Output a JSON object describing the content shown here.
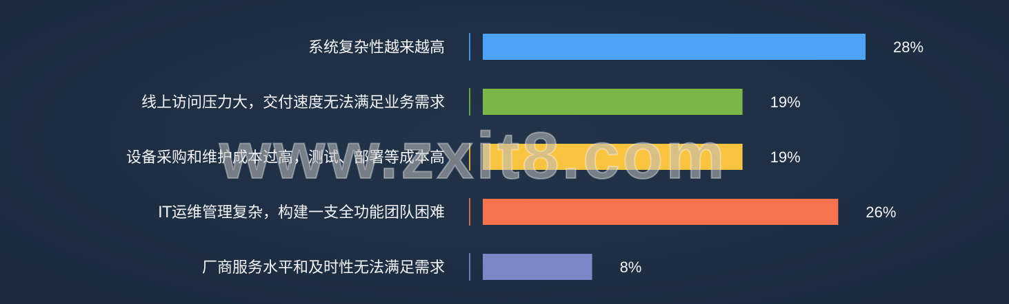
{
  "chart_data": {
    "type": "bar",
    "orientation": "horizontal",
    "categories": [
      "系统复杂性越来越高",
      "线上访问压力大，交付速度无法满足业务需求",
      "设备采购和维护成本过高，测试、部署等成本高",
      "IT运维管理复杂，构建一支全功能团队困难",
      "厂商服务水平和及时性无法满足需求"
    ],
    "values": [
      28,
      19,
      19,
      26,
      8
    ],
    "value_labels": [
      "28%",
      "19%",
      "19%",
      "26%",
      "8%"
    ],
    "colors": [
      "#4da3f7",
      "#7ab648",
      "#f9c440",
      "#f7734f",
      "#7c86c8"
    ],
    "unit": "%",
    "title": "",
    "xlabel": "",
    "ylabel": "",
    "xlim": [
      0,
      28
    ],
    "grid": false,
    "legend": "none"
  },
  "watermark": "www.zxit8.com",
  "theme": {
    "background": "#1e2e42",
    "text": "#f2f4f7"
  }
}
